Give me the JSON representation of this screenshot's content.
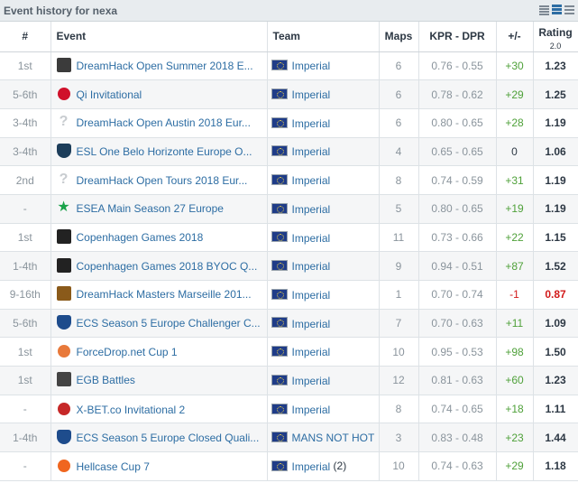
{
  "header": {
    "title": "Event history for nexa"
  },
  "columns": {
    "place": "#",
    "event": "Event",
    "team": "Team",
    "maps": "Maps",
    "kprdpr": "KPR - DPR",
    "diff": "+/-",
    "rating": "Rating",
    "rating_sub": "2.0"
  },
  "rows": [
    {
      "place": "1st",
      "event": "DreamHack Open Summer 2018 E...",
      "icon": "dreamhack-open-icon",
      "icon_color": "#3b3b3b",
      "team": "Imperial",
      "team_extra": "",
      "maps": "6",
      "kprdpr": "0.76 - 0.55",
      "diff": "+30",
      "diff_type": "pos",
      "rating": "1.23",
      "rating_type": "normal"
    },
    {
      "place": "5-6th",
      "event": "Qi Invitational",
      "icon": "qi-logo-icon",
      "icon_color": "#d0112b",
      "team": "Imperial",
      "team_extra": "",
      "maps": "6",
      "kprdpr": "0.78 - 0.62",
      "diff": "+29",
      "diff_type": "pos",
      "rating": "1.25",
      "rating_type": "normal"
    },
    {
      "place": "3-4th",
      "event": "DreamHack Open Austin 2018 Eur...",
      "icon": "question-mark-icon",
      "icon_color": "#c8ccd0",
      "team": "Imperial",
      "team_extra": "",
      "maps": "6",
      "kprdpr": "0.80 - 0.65",
      "diff": "+28",
      "diff_type": "pos",
      "rating": "1.19",
      "rating_type": "normal"
    },
    {
      "place": "3-4th",
      "event": "ESL One Belo Horizonte Europe O...",
      "icon": "esl-shield-icon",
      "icon_color": "#1c3d5a",
      "team": "Imperial",
      "team_extra": "",
      "maps": "4",
      "kprdpr": "0.65 - 0.65",
      "diff": "0",
      "diff_type": "neutral",
      "rating": "1.06",
      "rating_type": "normal"
    },
    {
      "place": "2nd",
      "event": "DreamHack Open Tours 2018 Eur...",
      "icon": "question-mark-icon",
      "icon_color": "#c8ccd0",
      "team": "Imperial",
      "team_extra": "",
      "maps": "8",
      "kprdpr": "0.74 - 0.59",
      "diff": "+31",
      "diff_type": "pos",
      "rating": "1.19",
      "rating_type": "normal"
    },
    {
      "place": "-",
      "event": "ESEA Main Season 27 Europe",
      "icon": "esea-star-icon",
      "icon_color": "#1aa34a",
      "team": "Imperial",
      "team_extra": "",
      "maps": "5",
      "kprdpr": "0.80 - 0.65",
      "diff": "+19",
      "diff_type": "pos",
      "rating": "1.19",
      "rating_type": "normal"
    },
    {
      "place": "1st",
      "event": "Copenhagen Games 2018",
      "icon": "copenhagen-games-icon",
      "icon_color": "#222222",
      "team": "Imperial",
      "team_extra": "",
      "maps": "11",
      "kprdpr": "0.73 - 0.66",
      "diff": "+22",
      "diff_type": "pos",
      "rating": "1.15",
      "rating_type": "normal"
    },
    {
      "place": "1-4th",
      "event": "Copenhagen Games 2018 BYOC Q...",
      "icon": "copenhagen-games-icon",
      "icon_color": "#222222",
      "team": "Imperial",
      "team_extra": "",
      "maps": "9",
      "kprdpr": "0.94 - 0.51",
      "diff": "+87",
      "diff_type": "pos",
      "rating": "1.52",
      "rating_type": "normal"
    },
    {
      "place": "9-16th",
      "event": "DreamHack Masters Marseille 201...",
      "icon": "dreamhack-masters-icon",
      "icon_color": "#8a5a1a",
      "team": "Imperial",
      "team_extra": "",
      "maps": "1",
      "kprdpr": "0.70 - 0.74",
      "diff": "-1",
      "diff_type": "neg",
      "rating": "0.87",
      "rating_type": "neg"
    },
    {
      "place": "5-6th",
      "event": "ECS Season 5 Europe Challenger C...",
      "icon": "ecs-shield-icon",
      "icon_color": "#1e4c8c",
      "team": "Imperial",
      "team_extra": "",
      "maps": "7",
      "kprdpr": "0.70 - 0.63",
      "diff": "+11",
      "diff_type": "pos",
      "rating": "1.09",
      "rating_type": "normal"
    },
    {
      "place": "1st",
      "event": "ForceDrop.net Cup 1",
      "icon": "forcedrop-icon",
      "icon_color": "#e8793a",
      "team": "Imperial",
      "team_extra": "",
      "maps": "10",
      "kprdpr": "0.95 - 0.53",
      "diff": "+98",
      "diff_type": "pos",
      "rating": "1.50",
      "rating_type": "normal"
    },
    {
      "place": "1st",
      "event": "EGB Battles",
      "icon": "egb-icon",
      "icon_color": "#444444",
      "team": "Imperial",
      "team_extra": "",
      "maps": "12",
      "kprdpr": "0.81 - 0.63",
      "diff": "+60",
      "diff_type": "pos",
      "rating": "1.23",
      "rating_type": "normal"
    },
    {
      "place": "-",
      "event": "X-BET.co Invitational 2",
      "icon": "xbet-icon",
      "icon_color": "#c62828",
      "team": "Imperial",
      "team_extra": "",
      "maps": "8",
      "kprdpr": "0.74 - 0.65",
      "diff": "+18",
      "diff_type": "pos",
      "rating": "1.11",
      "rating_type": "normal"
    },
    {
      "place": "1-4th",
      "event": "ECS Season 5 Europe Closed Quali...",
      "icon": "ecs-shield-icon",
      "icon_color": "#1e4c8c",
      "team": "MANS NOT HOT",
      "team_extra": "",
      "maps": "3",
      "kprdpr": "0.83 - 0.48",
      "diff": "+23",
      "diff_type": "pos",
      "rating": "1.44",
      "rating_type": "normal"
    },
    {
      "place": "-",
      "event": "Hellcase Cup 7",
      "icon": "hellcase-flame-icon",
      "icon_color": "#f0661f",
      "team": "Imperial",
      "team_extra": "(2)",
      "maps": "10",
      "kprdpr": "0.74 - 0.63",
      "diff": "+29",
      "diff_type": "pos",
      "rating": "1.18",
      "rating_type": "normal"
    }
  ]
}
